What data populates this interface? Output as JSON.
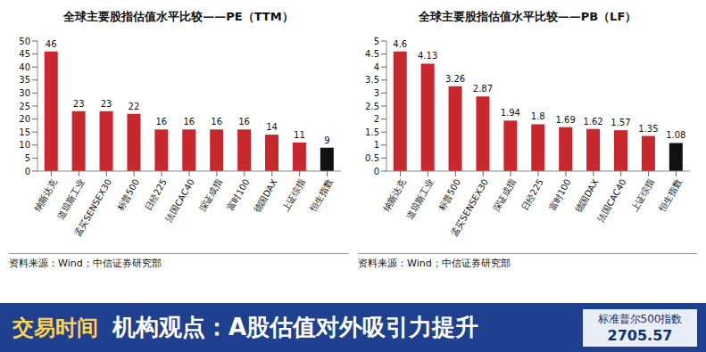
{
  "chart_data": [
    {
      "type": "bar",
      "title": "全球主要股指估值水平比较——PE（TTM）",
      "categories": [
        "纳斯达克",
        "道琼斯工业",
        "孟买SENSEX30",
        "标普500",
        "日经225",
        "法国CAC40",
        "深证成指",
        "富时100",
        "德国DAX",
        "上证综指",
        "恒生指数"
      ],
      "values": [
        46,
        23,
        23,
        22,
        16,
        16,
        16,
        16,
        14,
        11,
        9
      ],
      "colors": [
        "#c8282d",
        "#c8282d",
        "#c8282d",
        "#c8282d",
        "#c8282d",
        "#c8282d",
        "#c8282d",
        "#c8282d",
        "#c8282d",
        "#c8282d",
        "#111111"
      ],
      "ylim": [
        0,
        50
      ],
      "yticks": [
        0,
        5,
        10,
        15,
        20,
        25,
        30,
        35,
        40,
        45,
        50
      ],
      "grid": false,
      "data_labels": true,
      "annotations": [
        "资料来源：Wind；中信证券研究部"
      ]
    },
    {
      "type": "bar",
      "title": "全球主要股指估值水平比较——PB（LF）",
      "categories": [
        "纳斯达克",
        "道琼斯工业",
        "标普500",
        "孟买SENSEX30",
        "深证成指",
        "日经225",
        "富时100",
        "德国DAX",
        "法国CAC40",
        "上证综指",
        "恒生指数"
      ],
      "values": [
        4.6,
        4.13,
        3.26,
        2.87,
        1.94,
        1.8,
        1.69,
        1.62,
        1.57,
        1.35,
        1.08
      ],
      "colors": [
        "#c8282d",
        "#c8282d",
        "#c8282d",
        "#c8282d",
        "#c8282d",
        "#c8282d",
        "#c8282d",
        "#c8282d",
        "#c8282d",
        "#c8282d",
        "#111111"
      ],
      "ylim": [
        0,
        5
      ],
      "yticks": [
        0,
        0.5,
        1,
        1.5,
        2,
        2.5,
        3,
        3.5,
        4,
        4.5,
        5
      ],
      "grid": false,
      "data_labels": true,
      "annotations": [
        "资料来源：Wind；中信证券研究部"
      ]
    }
  ],
  "banner": {
    "program": "交易时间",
    "headline": "机构观点：A股估值对外吸引力提升",
    "ticker_name": "标准普尔500指数",
    "ticker_value": "2705.57"
  }
}
